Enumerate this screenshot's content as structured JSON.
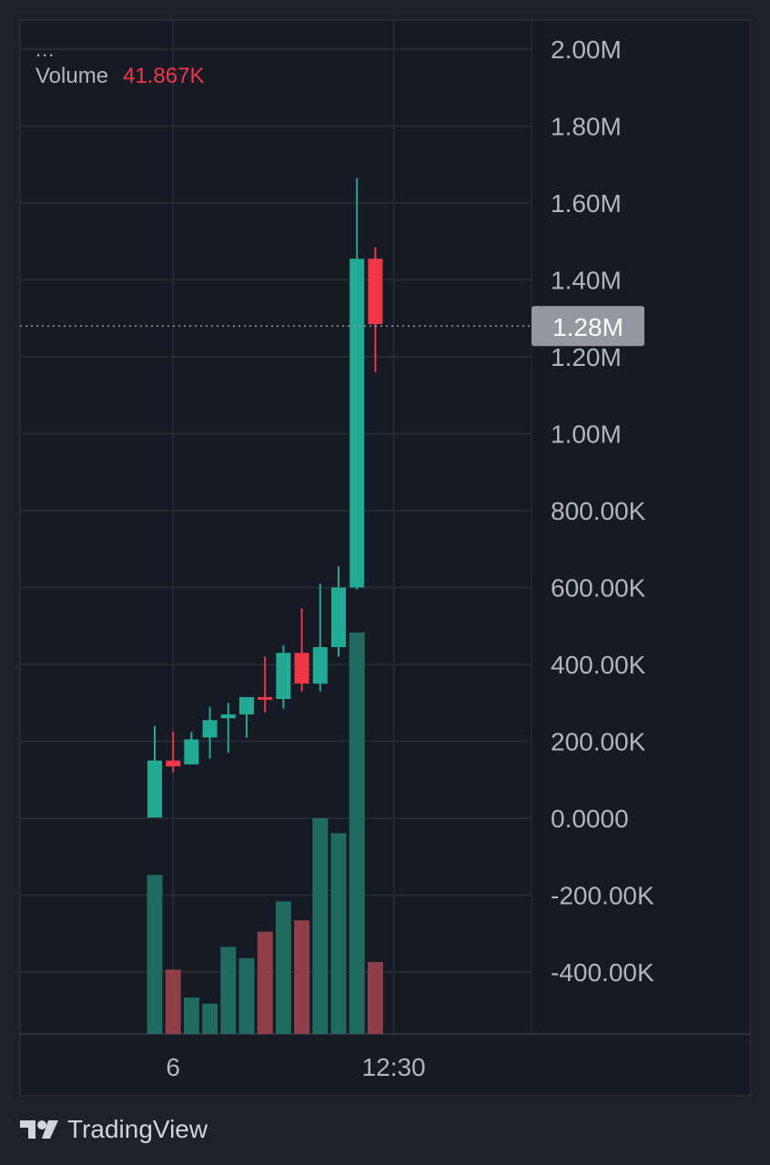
{
  "legend": {
    "menu": "...",
    "volume_label": "Volume",
    "volume_value": "41.867K"
  },
  "colors": {
    "up": "#22ab94",
    "down": "#f23645",
    "up_volume": "#1f6b5f",
    "down_volume": "#8e3f48",
    "background": "#1e2128",
    "pane": "#161a25",
    "grid": "#2a2e39",
    "text": "#b2b5be"
  },
  "branding": {
    "logo_icon": "tradingview-logo-icon",
    "name": "TradingView"
  },
  "chart_data": {
    "type": "candlestick",
    "y_axis": {
      "ticks": [
        2000000,
        1800000,
        1600000,
        1400000,
        1200000,
        1000000,
        800000,
        600000,
        400000,
        200000,
        0,
        -200000,
        -400000
      ],
      "tick_labels": [
        "2.00M",
        "1.80M",
        "1.60M",
        "1.40M",
        "1.20M",
        "1.00M",
        "800.00K",
        "600.00K",
        "400.00K",
        "200.00K",
        "0.0000",
        "-200.00K",
        "-400.00K"
      ],
      "ylim": [
        -560000,
        2070000
      ]
    },
    "x_axis": {
      "tick_labels": [
        {
          "label": "6",
          "at_index": 1
        },
        {
          "label": "12:30",
          "at_index": 13
        }
      ],
      "bar_count": 14
    },
    "current_price": {
      "value": 1280000,
      "label": "1.28M"
    },
    "candles": [
      {
        "open": 2000,
        "high": 240000,
        "low": 2000,
        "close": 150000
      },
      {
        "open": 150000,
        "high": 225000,
        "low": 120000,
        "close": 135000
      },
      {
        "open": 140000,
        "high": 225000,
        "low": 140000,
        "close": 205000
      },
      {
        "open": 210000,
        "high": 290000,
        "low": 155000,
        "close": 255000
      },
      {
        "open": 260000,
        "high": 300000,
        "low": 170000,
        "close": 270000
      },
      {
        "open": 270000,
        "high": 315000,
        "low": 210000,
        "close": 315000
      },
      {
        "open": 315000,
        "high": 420000,
        "low": 275000,
        "close": 310000
      },
      {
        "open": 310000,
        "high": 450000,
        "low": 285000,
        "close": 430000
      },
      {
        "open": 430000,
        "high": 545000,
        "low": 330000,
        "close": 350000
      },
      {
        "open": 350000,
        "high": 610000,
        "low": 330000,
        "close": 445000
      },
      {
        "open": 445000,
        "high": 655000,
        "low": 420000,
        "close": 600000
      },
      {
        "open": 600000,
        "high": 1665000,
        "low": 595000,
        "close": 1455000
      },
      {
        "open": 1455000,
        "high": 1485000,
        "low": 1160000,
        "close": 1285000
      }
    ],
    "volume": {
      "name": "Volume",
      "values": [
        210,
        85,
        48,
        40,
        115,
        100,
        135,
        175,
        150,
        285,
        265,
        530,
        95
      ],
      "directions": [
        "up",
        "down",
        "up",
        "up",
        "up",
        "up",
        "down",
        "up",
        "down",
        "up",
        "up",
        "up",
        "down"
      ]
    }
  }
}
